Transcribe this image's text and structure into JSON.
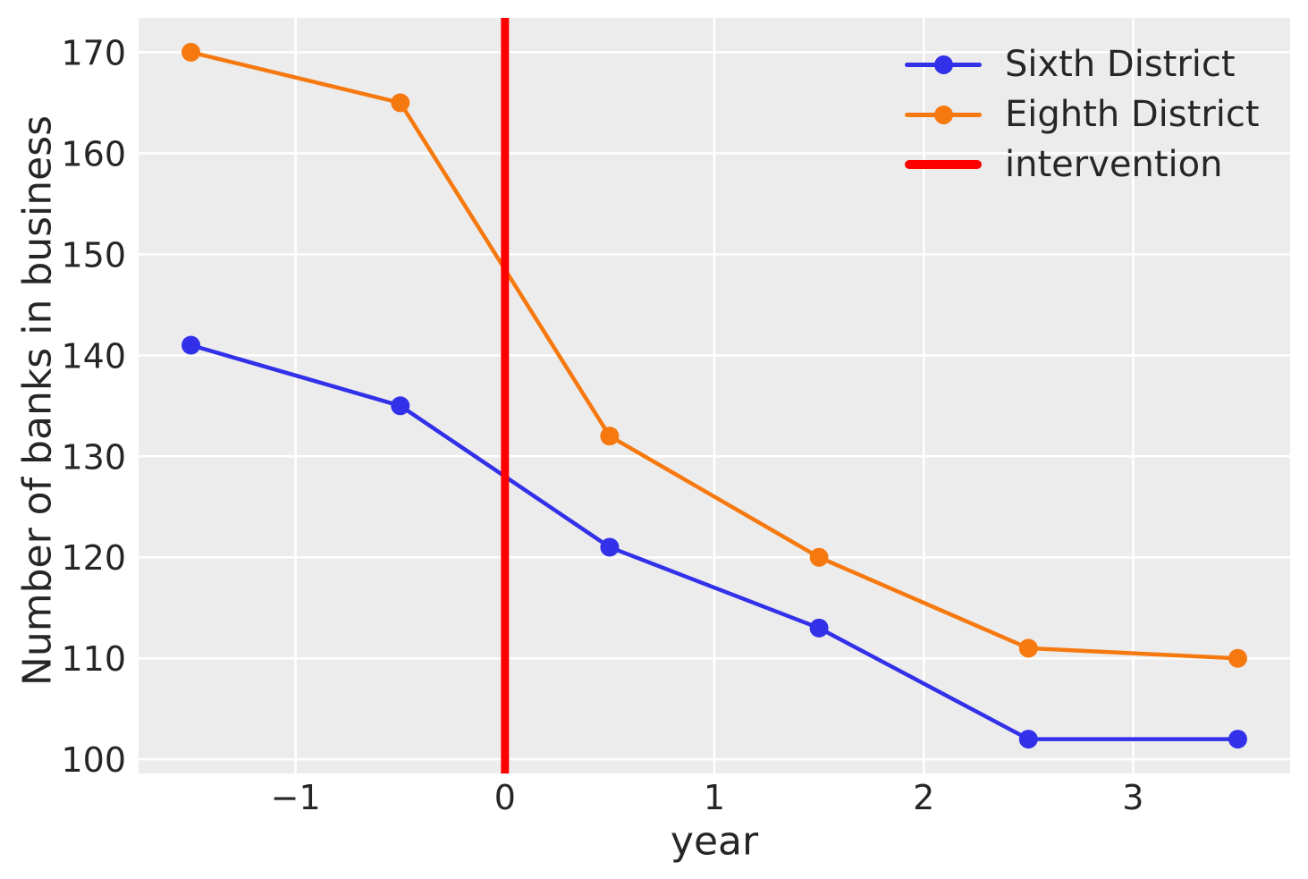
{
  "figure": {
    "background": "#ffffff",
    "plot_background": "#ececec",
    "grid_color": "#ffffff",
    "text_color": "#262626"
  },
  "chart_data": {
    "type": "line",
    "title": "",
    "xlabel": "year",
    "ylabel": "Number of banks in business",
    "x": [
      -1.5,
      -0.5,
      0.5,
      1.5,
      2.5,
      3.5
    ],
    "series": [
      {
        "name": "Sixth District",
        "color": "#3230e8",
        "marker": "circle",
        "values": [
          141,
          135,
          121,
          113,
          102,
          102
        ]
      },
      {
        "name": "Eighth District",
        "color": "#f6790f",
        "marker": "circle",
        "values": [
          170,
          165,
          132,
          120,
          111,
          110
        ]
      }
    ],
    "intervention_line": {
      "label": "intervention",
      "x": 0,
      "color": "#ff0000"
    },
    "xticks": {
      "values": [
        -1,
        0,
        1,
        2,
        3
      ],
      "labels": [
        "−1",
        "0",
        "1",
        "2",
        "3"
      ]
    },
    "yticks": {
      "values": [
        100,
        110,
        120,
        130,
        140,
        150,
        160,
        170
      ],
      "labels": [
        "100",
        "110",
        "120",
        "130",
        "140",
        "150",
        "160",
        "170"
      ]
    },
    "xlim": [
      -1.75,
      3.75
    ],
    "ylim": [
      98.6,
      173.4
    ],
    "grid": true,
    "legend_position": "upper right"
  }
}
